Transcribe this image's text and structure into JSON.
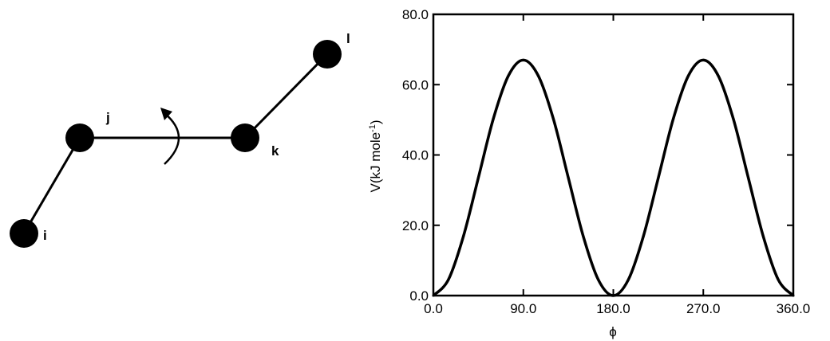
{
  "diagram": {
    "atoms": [
      {
        "id": "i",
        "label": "i"
      },
      {
        "id": "j",
        "label": "j"
      },
      {
        "id": "k",
        "label": "k"
      },
      {
        "id": "l",
        "label": "l"
      }
    ],
    "bonds": [
      [
        "i",
        "j"
      ],
      [
        "j",
        "k"
      ],
      [
        "k",
        "l"
      ]
    ],
    "rotation_arrow": "rotation about the j–k bond"
  },
  "chart_data": {
    "type": "line",
    "title": "",
    "xlabel": "ϕ",
    "ylabel": "V(kJ mole",
    "ylabel_superscript": "-1",
    "ylabel_suffix": ")",
    "xlim": [
      0,
      360
    ],
    "ylim": [
      0,
      80
    ],
    "xticks": [
      0,
      90,
      180,
      270,
      360
    ],
    "xtick_labels": [
      "0.0",
      "90.0",
      "180.0",
      "270.0",
      "360.0"
    ],
    "yticks": [
      0,
      20,
      40,
      60,
      80
    ],
    "ytick_labels": [
      "0.0",
      "20.0",
      "40.0",
      "60.0",
      "80.0"
    ],
    "grid": false,
    "series": [
      {
        "x": [
          0,
          15,
          30,
          45,
          60,
          75,
          90,
          105,
          120,
          135,
          150,
          165,
          180,
          195,
          210,
          225,
          240,
          255,
          270,
          285,
          300,
          315,
          330,
          345,
          360
        ],
        "y": [
          0,
          4.5,
          16.8,
          33.5,
          50.3,
          62.5,
          67,
          62.5,
          50.3,
          33.5,
          16.8,
          4.5,
          0,
          4.5,
          16.8,
          33.5,
          50.3,
          62.5,
          67,
          62.5,
          50.3,
          33.5,
          16.8,
          4.5,
          0
        ]
      }
    ],
    "color": "#000000"
  }
}
